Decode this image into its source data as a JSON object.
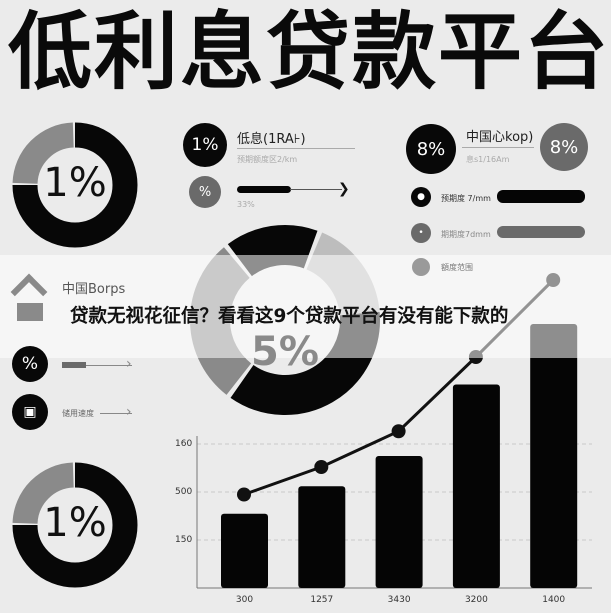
{
  "title": "低利息贷款平台",
  "banner": "贷款无视花征信？看看这9个贷款平台有没有能下款的",
  "donuts": [
    {
      "label": "1%",
      "black_fraction": 0.8
    },
    {
      "label": "5%"
    },
    {
      "label": "1%",
      "black_fraction": 0.8
    }
  ],
  "middle_panel": {
    "badge1": "1%",
    "label1": "低息(1RA⊦)",
    "sub1": "预期额度区2/km",
    "badge2": "%",
    "progress_text": "33%",
    "progress": 0.33
  },
  "right_panel": {
    "badge_left": "8%",
    "label": "中国心kop)",
    "sub": "息s1/16Am",
    "badge_right": "8%",
    "rows": [
      {
        "text": "预期度 7/mm",
        "fill": 1.0
      },
      {
        "text": "期期度7dmm",
        "fill": 1.0
      },
      {
        "text": "額度范围"
      }
    ]
  },
  "left_panel": {
    "label": "中国Borps",
    "badge": "%",
    "row_text": "储用速度"
  },
  "chart_data": {
    "type": "bar",
    "categories": [
      "300",
      "1257",
      "3430",
      "3200",
      "1400"
    ],
    "y_tick_labels": [
      "160",
      "500",
      "150"
    ],
    "bar_heights_relative": [
      0.27,
      0.37,
      0.48,
      0.74,
      0.96
    ],
    "line_relative": [
      0.34,
      0.44,
      0.57,
      0.84,
      1.12
    ],
    "colors": {
      "bars": "#050505",
      "line": "#111111",
      "grid": "#c8c8c8"
    }
  }
}
